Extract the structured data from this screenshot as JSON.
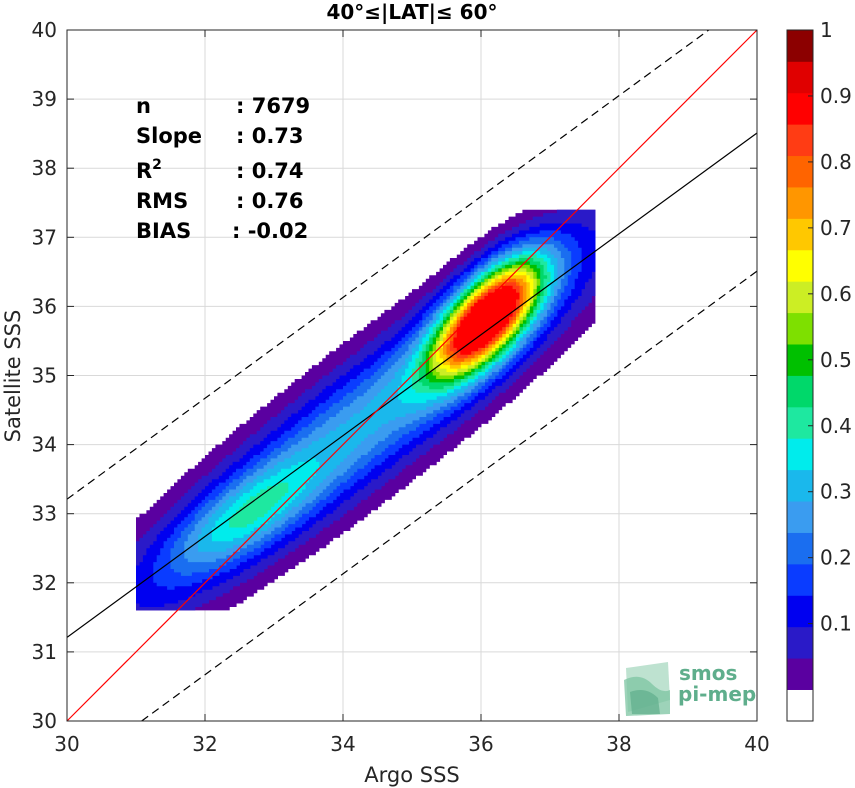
{
  "chart_data": {
    "type": "contour density scatter",
    "title": "40°≤|LAT|≤ 60°",
    "xlabel": "Argo SSS",
    "ylabel": "Satellite SSS",
    "xlim": [
      30,
      40
    ],
    "ylim": [
      30,
      40
    ],
    "xticks": [
      "30",
      "32",
      "34",
      "36",
      "38",
      "40"
    ],
    "yticks": [
      "30",
      "31",
      "32",
      "33",
      "34",
      "35",
      "36",
      "37",
      "38",
      "39",
      "40"
    ],
    "grid": true,
    "stats": [
      {
        "label": "n",
        "value": ": 7679"
      },
      {
        "label": "Slope",
        "value": ": 0.73"
      },
      {
        "label": "R",
        "sup": "2",
        "value": ": 0.74"
      },
      {
        "label": "RMS",
        "value": ": 0.76"
      },
      {
        "label": "BIAS",
        "value": ": -0.02"
      }
    ],
    "reference_lines": {
      "one_to_one": {
        "slope": 1,
        "intercept": 0,
        "color": "#ff0000"
      },
      "regression": {
        "slope": 0.73,
        "intercept": 9.31,
        "color": "#000000"
      },
      "bounds_offset": 2.0
    },
    "density_levels": [
      0.05,
      0.1,
      0.15,
      0.2,
      0.25,
      0.3,
      0.35,
      0.4,
      0.45,
      0.5,
      0.55,
      0.6,
      0.65,
      0.7,
      0.75,
      0.8,
      0.85,
      0.9,
      0.95
    ],
    "density_peak": {
      "x": 36.1,
      "y": 35.85
    },
    "colorbar": {
      "ticks": [
        "0.1",
        "0.2",
        "0.3",
        "0.4",
        "0.5",
        "0.6",
        "0.7",
        "0.8",
        "0.9",
        "1"
      ],
      "range": [
        0,
        1
      ],
      "colors": [
        "#ffffff",
        "#5a00a0",
        "#2a1ac8",
        "#0000f0",
        "#0a3cff",
        "#1a6ef0",
        "#3a9cf0",
        "#1ab8ec",
        "#00ecec",
        "#1ee8a0",
        "#00d86a",
        "#00c000",
        "#7ee000",
        "#ccee24",
        "#ffff00",
        "#ffc800",
        "#ff9600",
        "#ff6400",
        "#ff3c14",
        "#ff0000",
        "#e00000",
        "#8c0000"
      ]
    }
  },
  "logo": {
    "line1": "smos",
    "line2": "pi-mep"
  }
}
